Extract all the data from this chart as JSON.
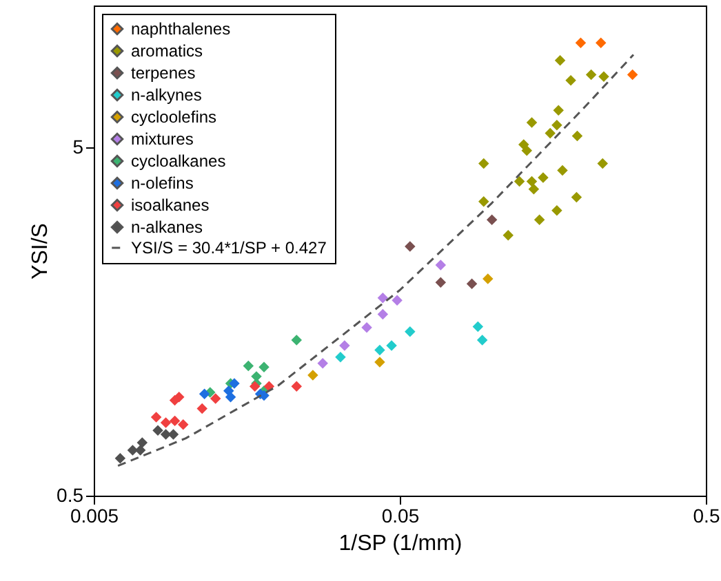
{
  "chart_data": {
    "type": "scatter",
    "xlabel": "1/SP (1/mm)",
    "ylabel": "YSI/S",
    "log": "xy",
    "xlim": [
      0.005,
      0.5
    ],
    "xticks": [
      0.005,
      0.05,
      0.5
    ],
    "ylim": [
      0.5,
      12.8
    ],
    "yticks": [
      0.5,
      5
    ],
    "grid": false,
    "legend": "top left",
    "marker": "diamond",
    "series": [
      {
        "name": "naphthalenes",
        "color": "#ff6a00",
        "x": [
          0.195,
          0.227,
          0.288
        ],
        "values": [
          10.0,
          10.0,
          8.1
        ]
      },
      {
        "name": "aromatics",
        "color": "#999900",
        "x": [
          0.167,
          0.211,
          0.232,
          0.181,
          0.165,
          0.135,
          0.163,
          0.155,
          0.19,
          0.127,
          0.13,
          0.094,
          0.23,
          0.17,
          0.123,
          0.135,
          0.147,
          0.137,
          0.094,
          0.189,
          0.163,
          0.143,
          0.113
        ],
        "values": [
          8.9,
          8.1,
          8.0,
          7.8,
          6.4,
          5.9,
          5.8,
          5.5,
          5.4,
          5.1,
          4.9,
          4.5,
          4.5,
          4.3,
          4.0,
          4.0,
          4.1,
          3.8,
          3.5,
          3.6,
          3.3,
          3.1,
          2.8
        ]
      },
      {
        "name": "terpenes",
        "color": "#7a5050",
        "x": [
          0.1,
          0.054,
          0.068,
          0.086
        ],
        "values": [
          3.1,
          2.6,
          2.05,
          2.03
        ]
      },
      {
        "name": "n-alkynes",
        "color": "#22cccc",
        "x": [
          0.09,
          0.093,
          0.054,
          0.047,
          0.043,
          0.032
        ],
        "values": [
          1.53,
          1.4,
          1.48,
          1.35,
          1.31,
          1.25
        ]
      },
      {
        "name": "cycloolefins",
        "color": "#d4a000",
        "x": [
          0.097,
          0.026,
          0.043
        ],
        "values": [
          2.1,
          1.11,
          1.21
        ]
      },
      {
        "name": "mixtures",
        "color": "#b47fe6",
        "x": [
          0.068,
          0.044,
          0.049,
          0.044,
          0.039,
          0.033,
          0.028
        ],
        "values": [
          2.3,
          1.85,
          1.82,
          1.66,
          1.52,
          1.35,
          1.2
        ]
      },
      {
        "name": "cycloalkanes",
        "color": "#3cb371",
        "x": [
          0.023,
          0.016,
          0.018,
          0.017,
          0.017,
          0.018,
          0.014,
          0.012
        ],
        "values": [
          1.4,
          1.18,
          1.17,
          1.1,
          1.05,
          1.0,
          1.05,
          0.99
        ]
      },
      {
        "name": "n-olefins",
        "color": "#1e6fe0",
        "x": [
          0.0115,
          0.0144,
          0.0138,
          0.014,
          0.018,
          0.0175
        ],
        "values": [
          0.98,
          1.05,
          1.0,
          0.96,
          0.97,
          0.98
        ]
      },
      {
        "name": "isoalkanes",
        "color": "#f04040",
        "x": [
          0.023,
          0.0168,
          0.0187,
          0.0095,
          0.0092,
          0.0125,
          0.0113,
          0.008,
          0.0086,
          0.0092,
          0.0098
        ],
        "values": [
          1.03,
          1.03,
          1.03,
          0.96,
          0.94,
          0.95,
          0.89,
          0.84,
          0.81,
          0.82,
          0.8
        ]
      },
      {
        "name": "n-alkanes",
        "color": "#505050",
        "x": [
          0.0061,
          0.0067,
          0.0072,
          0.0081,
          0.0086,
          0.0091,
          0.0071
        ],
        "values": [
          0.64,
          0.675,
          0.71,
          0.77,
          0.75,
          0.75,
          0.675
        ]
      },
      {
        "name": "YSI/S = 30.4*1/SP + 0.427",
        "type": "line",
        "line_style": "dashed",
        "marker": "none",
        "color": "#555555",
        "x": [
          0.006,
          0.01,
          0.02,
          0.05,
          0.1,
          0.2,
          0.29
        ],
        "values": [
          0.609,
          0.731,
          1.035,
          1.947,
          3.467,
          6.507,
          9.243
        ]
      }
    ]
  }
}
